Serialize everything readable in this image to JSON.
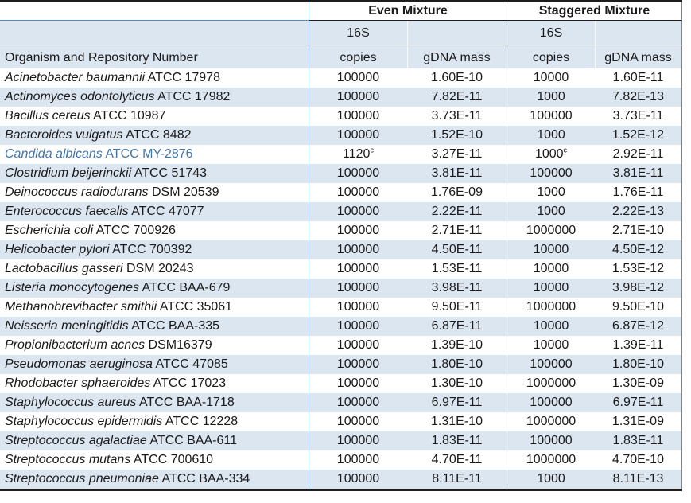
{
  "colors": {
    "stripe_blue": "#dce6f1",
    "grid_blue": "#5b8ac3",
    "border_black": "#1d1d1d",
    "candida_text_blue": "#4175ad"
  },
  "table": {
    "group_headers": [
      {
        "label": "Even Mixture"
      },
      {
        "label": "Staggered Mixture"
      }
    ],
    "headers": {
      "organism": "Organism and Repository Number",
      "s16": "16S",
      "copies": "copies",
      "gdna_mass": "gDNA mass"
    },
    "rows": [
      {
        "name": "Acinetobacter baumannii",
        "id": "ATCC 17978",
        "even": {
          "copies": "100000",
          "gdna": "1.60E-10"
        },
        "staggered": {
          "copies": "10000",
          "gdna": "1.60E-11"
        }
      },
      {
        "name": "Actinomyces odontolyticus",
        "id": "ATCC 17982",
        "even": {
          "copies": "100000",
          "gdna": "7.82E-11"
        },
        "staggered": {
          "copies": "1000",
          "gdna": "7.82E-13"
        }
      },
      {
        "name": "Bacillus cereus",
        "id": "ATCC 10987",
        "even": {
          "copies": "100000",
          "gdna": "3.73E-11"
        },
        "staggered": {
          "copies": "100000",
          "gdna": "3.73E-11"
        }
      },
      {
        "name": "Bacteroides vulgatus",
        "id": "ATCC 8482",
        "even": {
          "copies": "100000",
          "gdna": "1.52E-10"
        },
        "staggered": {
          "copies": "1000",
          "gdna": "1.52E-12"
        }
      },
      {
        "name": "Candida albicans",
        "id": "ATCC MY-2876",
        "text_color": "#4175ad",
        "even": {
          "copies": "1120",
          "copies_sup": "c",
          "gdna": "3.27E-11"
        },
        "staggered": {
          "copies": "1000",
          "copies_sup": "c",
          "gdna": "2.92E-11"
        }
      },
      {
        "name": "Clostridium beijerinckii",
        "id": "ATCC 51743",
        "even": {
          "copies": "100000",
          "gdna": "3.81E-11"
        },
        "staggered": {
          "copies": "100000",
          "gdna": "3.81E-11"
        }
      },
      {
        "name": "Deinococcus radiodurans",
        "id": "DSM 20539",
        "even": {
          "copies": "100000",
          "gdna": "1.76E-09"
        },
        "staggered": {
          "copies": "1000",
          "gdna": "1.76E-11"
        }
      },
      {
        "name": "Enterococcus faecalis",
        "id": "ATCC 47077",
        "even": {
          "copies": "100000",
          "gdna": "2.22E-11"
        },
        "staggered": {
          "copies": "1000",
          "gdna": "2.22E-13"
        }
      },
      {
        "name": "Escherichia coli",
        "id": "ATCC 700926",
        "even": {
          "copies": "100000",
          "gdna": "2.71E-11"
        },
        "staggered": {
          "copies": "1000000",
          "gdna": "2.71E-10"
        }
      },
      {
        "name": "Helicobacter pylori",
        "id": "ATCC 700392",
        "even": {
          "copies": "100000",
          "gdna": "4.50E-11"
        },
        "staggered": {
          "copies": "10000",
          "gdna": "4.50E-12"
        }
      },
      {
        "name": "Lactobacillus gasseri",
        "id": "DSM 20243",
        "even": {
          "copies": "100000",
          "gdna": "1.53E-11"
        },
        "staggered": {
          "copies": "10000",
          "gdna": "1.53E-12"
        }
      },
      {
        "name": "Listeria monocytogenes",
        "id": "ATCC BAA-679",
        "even": {
          "copies": "100000",
          "gdna": "3.98E-11"
        },
        "staggered": {
          "copies": "10000",
          "gdna": "3.98E-12"
        }
      },
      {
        "name": "Methanobrevibacter smithii",
        "id": "ATCC 35061",
        "even": {
          "copies": "100000",
          "gdna": "9.50E-11"
        },
        "staggered": {
          "copies": "1000000",
          "gdna": "9.50E-10"
        }
      },
      {
        "name": "Neisseria meningitidis",
        "id": "ATCC BAA-335",
        "even": {
          "copies": "100000",
          "gdna": "6.87E-11"
        },
        "staggered": {
          "copies": "10000",
          "gdna": "6.87E-12"
        }
      },
      {
        "name": "Propionibacterium acnes",
        "id": "DSM16379",
        "even": {
          "copies": "100000",
          "gdna": "1.39E-10"
        },
        "staggered": {
          "copies": "10000",
          "gdna": "1.39E-11"
        }
      },
      {
        "name": "Pseudomonas aeruginosa",
        "id": "ATCC 47085",
        "even": {
          "copies": "100000",
          "gdna": "1.80E-10"
        },
        "staggered": {
          "copies": "100000",
          "gdna": "1.80E-10"
        }
      },
      {
        "name": "Rhodobacter sphaeroides",
        "id": "ATCC 17023",
        "even": {
          "copies": "100000",
          "gdna": "1.30E-10"
        },
        "staggered": {
          "copies": "1000000",
          "gdna": "1.30E-09"
        }
      },
      {
        "name": "Staphylococcus aureus",
        "id": "ATCC BAA-1718",
        "even": {
          "copies": "100000",
          "gdna": "6.97E-11"
        },
        "staggered": {
          "copies": "100000",
          "gdna": "6.97E-11"
        }
      },
      {
        "name": "Staphylococcus epidermidis",
        "id": "ATCC 12228",
        "even": {
          "copies": "100000",
          "gdna": "1.31E-10"
        },
        "staggered": {
          "copies": "1000000",
          "gdna": "1.31E-09"
        }
      },
      {
        "name": "Streptococcus agalactiae",
        "id": "ATCC BAA-611",
        "even": {
          "copies": "100000",
          "gdna": "1.83E-11"
        },
        "staggered": {
          "copies": "100000",
          "gdna": "1.83E-11"
        }
      },
      {
        "name": "Streptococcus mutans",
        "id": "ATCC 700610",
        "even": {
          "copies": "100000",
          "gdna": "4.70E-11"
        },
        "staggered": {
          "copies": "1000000",
          "gdna": "4.70E-10"
        }
      },
      {
        "name": "Streptococcus pneumoniae",
        "id": "ATCC BAA-334",
        "even": {
          "copies": "100000",
          "gdna": "8.11E-11"
        },
        "staggered": {
          "copies": "1000",
          "gdna": "8.11E-13"
        }
      }
    ]
  }
}
